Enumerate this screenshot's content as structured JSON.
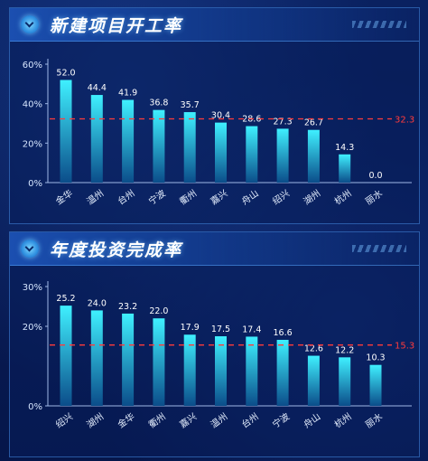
{
  "colors": {
    "bar_top": "#3ff0ff",
    "bar_bottom": "#0b4d8a",
    "reference_line": "#ff3b3b",
    "axis": "#9fb8e6"
  },
  "panels": [
    {
      "title": "新建项目开工率",
      "icon": "chevron-down-icon",
      "chart_data": {
        "type": "bar",
        "categories": [
          "金华",
          "温州",
          "台州",
          "宁波",
          "衢州",
          "嘉兴",
          "舟山",
          "绍兴",
          "湖州",
          "杭州",
          "丽水"
        ],
        "values": [
          52.0,
          44.4,
          41.9,
          36.8,
          35.7,
          30.4,
          28.6,
          27.3,
          26.7,
          14.3,
          0.0
        ],
        "value_labels": [
          "52.0",
          "44.4",
          "41.9",
          "36.8",
          "35.7",
          "30.4",
          "28.6",
          "27.3",
          "26.7",
          "14.3",
          "0.0"
        ],
        "reference_line": {
          "value": 32.3,
          "label": "32.3"
        },
        "ylim": [
          0,
          60
        ],
        "yticks": [
          {
            "value": 0,
            "label": "0%"
          },
          {
            "value": 20,
            "label": "20%"
          },
          {
            "value": 40,
            "label": "40%"
          },
          {
            "value": 60,
            "label": "60%"
          }
        ],
        "title": "新建项目开工率",
        "grid": false
      }
    },
    {
      "title": "年度投资完成率",
      "icon": "chevron-down-icon",
      "chart_data": {
        "type": "bar",
        "categories": [
          "绍兴",
          "湖州",
          "金华",
          "衢州",
          "嘉兴",
          "温州",
          "台州",
          "宁波",
          "舟山",
          "杭州",
          "丽水"
        ],
        "values": [
          25.2,
          24.0,
          23.2,
          22.0,
          17.9,
          17.5,
          17.4,
          16.6,
          12.6,
          12.2,
          10.3
        ],
        "value_labels": [
          "25.2",
          "24.0",
          "23.2",
          "22.0",
          "17.9",
          "17.5",
          "17.4",
          "16.6",
          "12.6",
          "12.2",
          "10.3"
        ],
        "reference_line": {
          "value": 15.3,
          "label": "15.3"
        },
        "ylim": [
          0,
          30
        ],
        "yticks": [
          {
            "value": 0,
            "label": "0%"
          },
          {
            "value": 20,
            "label": "20%"
          },
          {
            "value": 30,
            "label": "30%"
          }
        ],
        "title": "年度投资完成率",
        "grid": false
      }
    }
  ]
}
